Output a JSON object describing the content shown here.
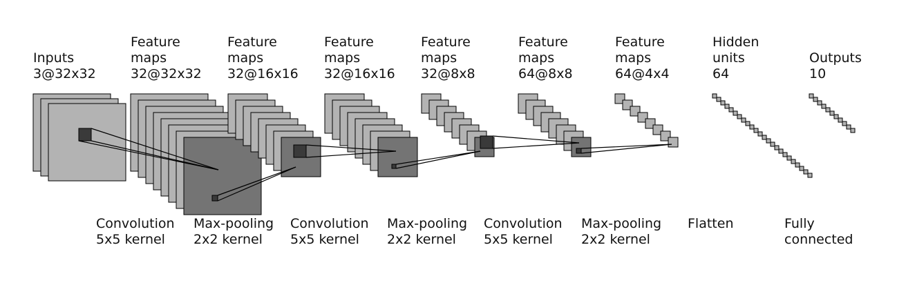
{
  "layer_labels": [
    {
      "lines": [
        "Inputs",
        "3@32x32"
      ]
    },
    {
      "lines": [
        "Feature",
        "maps",
        "32@32x32"
      ]
    },
    {
      "lines": [
        "Feature",
        "maps",
        "32@16x16"
      ]
    },
    {
      "lines": [
        "Feature",
        "maps",
        "32@16x16"
      ]
    },
    {
      "lines": [
        "Feature",
        "maps",
        "32@8x8"
      ]
    },
    {
      "lines": [
        "Feature",
        "maps",
        "64@8x8"
      ]
    },
    {
      "lines": [
        "Feature",
        "maps",
        "64@4x4"
      ]
    },
    {
      "lines": [
        "Hidden",
        "units",
        "64"
      ]
    },
    {
      "lines": [
        "Outputs",
        "10"
      ]
    }
  ],
  "operation_labels": [
    {
      "lines": [
        "Convolution",
        "5x5 kernel"
      ]
    },
    {
      "lines": [
        "Max-pooling",
        "2x2 kernel"
      ]
    },
    {
      "lines": [
        "Convolution",
        "5x5 kernel"
      ]
    },
    {
      "lines": [
        "Max-pooling",
        "2x2 kernel"
      ]
    },
    {
      "lines": [
        "Convolution",
        "5x5 kernel"
      ]
    },
    {
      "lines": [
        "Max-pooling",
        "2x2 kernel"
      ]
    },
    {
      "lines": [
        "Flatten"
      ]
    },
    {
      "lines": [
        "Fully",
        "connected"
      ]
    }
  ],
  "colors": {
    "map_light": "#b3b3b3",
    "map_mid": "#8c8c8c",
    "map_dark": "#747474",
    "patch": "#3a3a3a",
    "line": "#000000"
  }
}
